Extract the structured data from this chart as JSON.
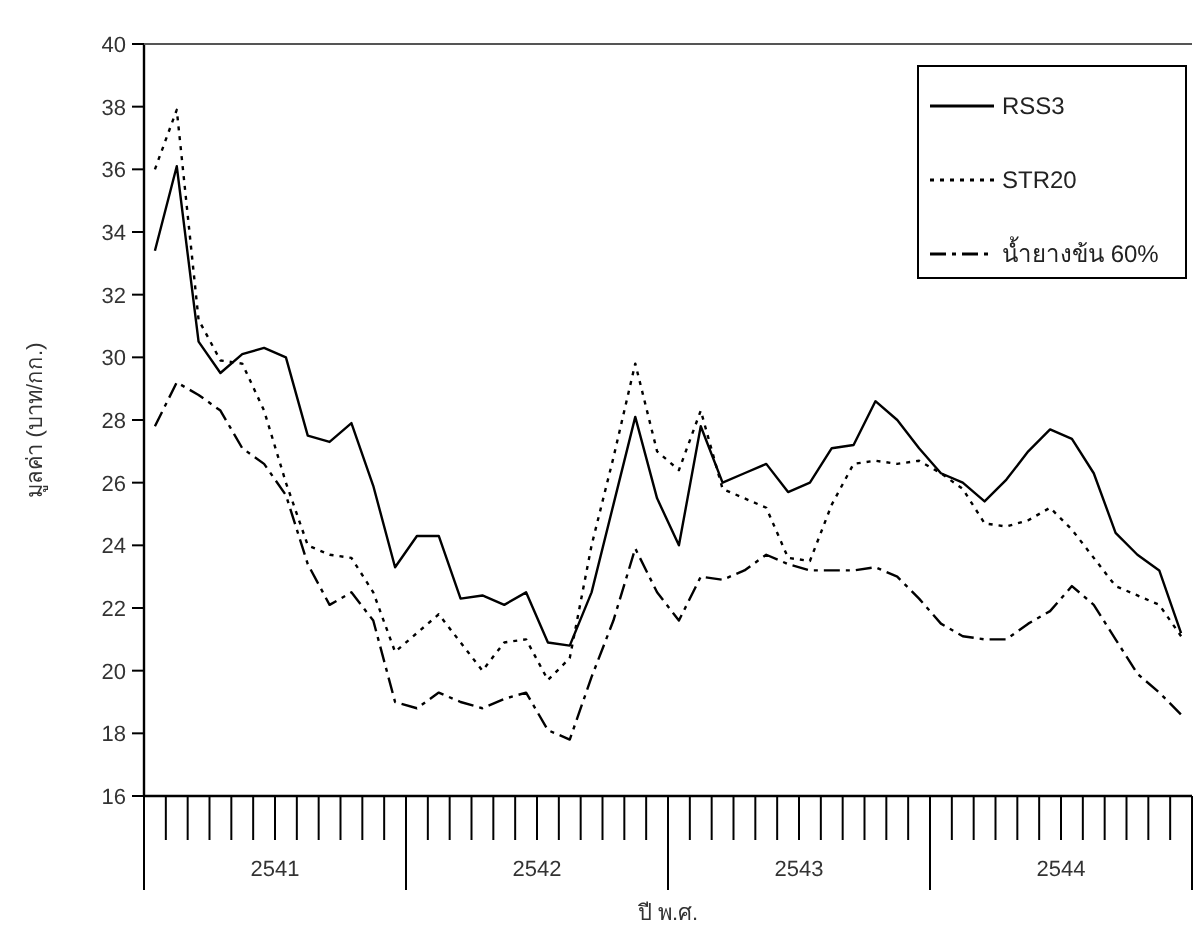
{
  "chart_data": {
    "type": "line",
    "xlabel": "ปี พ.ศ.",
    "ylabel": "มูลค่า (บาท/กก.)",
    "categories": [
      null,
      null,
      null,
      null,
      null,
      null,
      null,
      null,
      null,
      null,
      null,
      null,
      null,
      null,
      null,
      null,
      null,
      null,
      null,
      null,
      null,
      null,
      null,
      null,
      null,
      null,
      null,
      null,
      null,
      null,
      null,
      null,
      null,
      null,
      null,
      null,
      null,
      null,
      null,
      null,
      null,
      null,
      null,
      null,
      null,
      null,
      null,
      null
    ],
    "annotations": [
      "2541",
      "2542",
      "2543",
      "2544"
    ],
    "ylim": [
      16,
      40
    ],
    "yticks": [
      16,
      18,
      20,
      22,
      24,
      26,
      28,
      30,
      32,
      34,
      36,
      38,
      40
    ],
    "grid": false,
    "legend": "top right",
    "series": [
      {
        "name": "RSS3",
        "color": "#000000",
        "line_style": "solid",
        "values": [
          33.4,
          36.1,
          30.5,
          29.5,
          30.1,
          30.3,
          30.0,
          27.5,
          27.3,
          27.9,
          25.9,
          23.3,
          24.3,
          24.3,
          22.3,
          22.4,
          22.1,
          22.5,
          20.9,
          20.8,
          22.5,
          25.3,
          28.1,
          25.5,
          24.0,
          27.8,
          26.0,
          26.3,
          26.6,
          25.7,
          26.0,
          27.1,
          27.2,
          28.6,
          28.0,
          27.1,
          26.3,
          26.0,
          25.4,
          26.1,
          27.0,
          27.7,
          27.4,
          26.3,
          24.4,
          23.7,
          23.2,
          21.2
        ]
      },
      {
        "name": "STR20",
        "color": "#000000",
        "line_style": "dotted",
        "values": [
          36.0,
          37.9,
          31.2,
          29.9,
          29.8,
          28.3,
          26.0,
          24.0,
          23.7,
          23.6,
          22.5,
          20.6,
          21.2,
          21.8,
          20.9,
          20.0,
          20.9,
          21.0,
          19.7,
          20.4,
          24.0,
          26.8,
          29.8,
          27.0,
          26.4,
          28.3,
          25.8,
          25.5,
          25.2,
          23.6,
          23.5,
          25.3,
          26.6,
          26.7,
          26.6,
          26.7,
          26.3,
          25.8,
          24.7,
          24.6,
          24.8,
          25.2,
          24.5,
          23.6,
          22.7,
          22.4,
          22.1,
          21.1
        ]
      },
      {
        "name": "น้ำยางข้น 60%",
        "color": "#000000",
        "line_style": "dashdot",
        "values": [
          27.8,
          29.2,
          28.8,
          28.3,
          27.1,
          26.6,
          25.6,
          23.4,
          22.1,
          22.5,
          21.6,
          19.0,
          18.8,
          19.3,
          19.0,
          18.8,
          19.1,
          19.3,
          18.1,
          17.8,
          19.8,
          21.6,
          23.9,
          22.5,
          21.6,
          23.0,
          22.9,
          23.2,
          23.7,
          23.4,
          23.2,
          23.2,
          23.2,
          23.3,
          23.0,
          22.3,
          21.5,
          21.1,
          21.0,
          21.0,
          21.5,
          21.9,
          22.7,
          22.1,
          21.0,
          19.9,
          19.3,
          18.6
        ]
      }
    ]
  }
}
